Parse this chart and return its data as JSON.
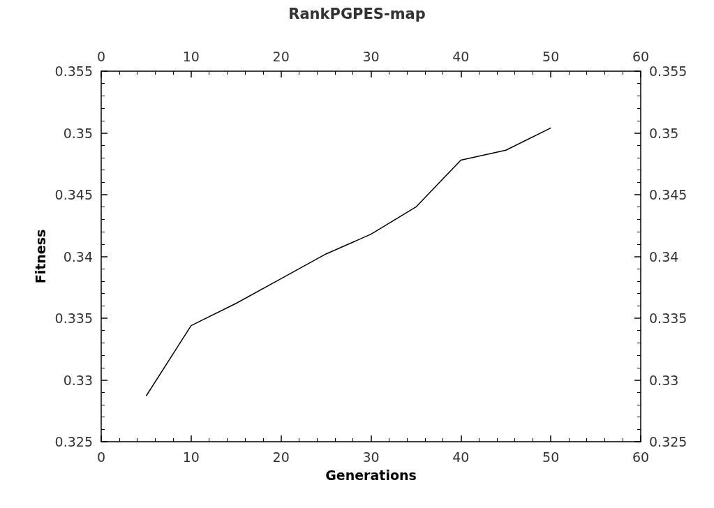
{
  "chart_data": {
    "type": "line",
    "title": "RankPGPES-map",
    "xlabel": "Generations",
    "ylabel": "Fitness",
    "x": [
      5,
      10,
      15,
      20,
      25,
      30,
      35,
      40,
      45,
      50
    ],
    "series": [
      {
        "color": "#000000",
        "values": [
          0.3287,
          0.3344,
          0.3362,
          0.3382,
          0.3402,
          0.3418,
          0.344,
          0.3478,
          0.3486,
          0.3504
        ]
      }
    ],
    "xlim": [
      0,
      60
    ],
    "xticks": [
      0,
      10,
      20,
      30,
      40,
      50,
      60
    ],
    "x2lim": [
      0,
      60
    ],
    "x2ticks": [
      0,
      10,
      20,
      30,
      40,
      50,
      60
    ],
    "ylim": [
      0.325,
      0.355
    ],
    "yticks": [
      0.325,
      0.33,
      0.335,
      0.34,
      0.345,
      0.35,
      0.355
    ],
    "y2lim": [
      0.325,
      0.355
    ],
    "y2ticks": [
      0.325,
      0.33,
      0.335,
      0.34,
      0.345,
      0.35,
      0.355
    ],
    "grid": false,
    "marker": "none",
    "line_style": "solid"
  }
}
